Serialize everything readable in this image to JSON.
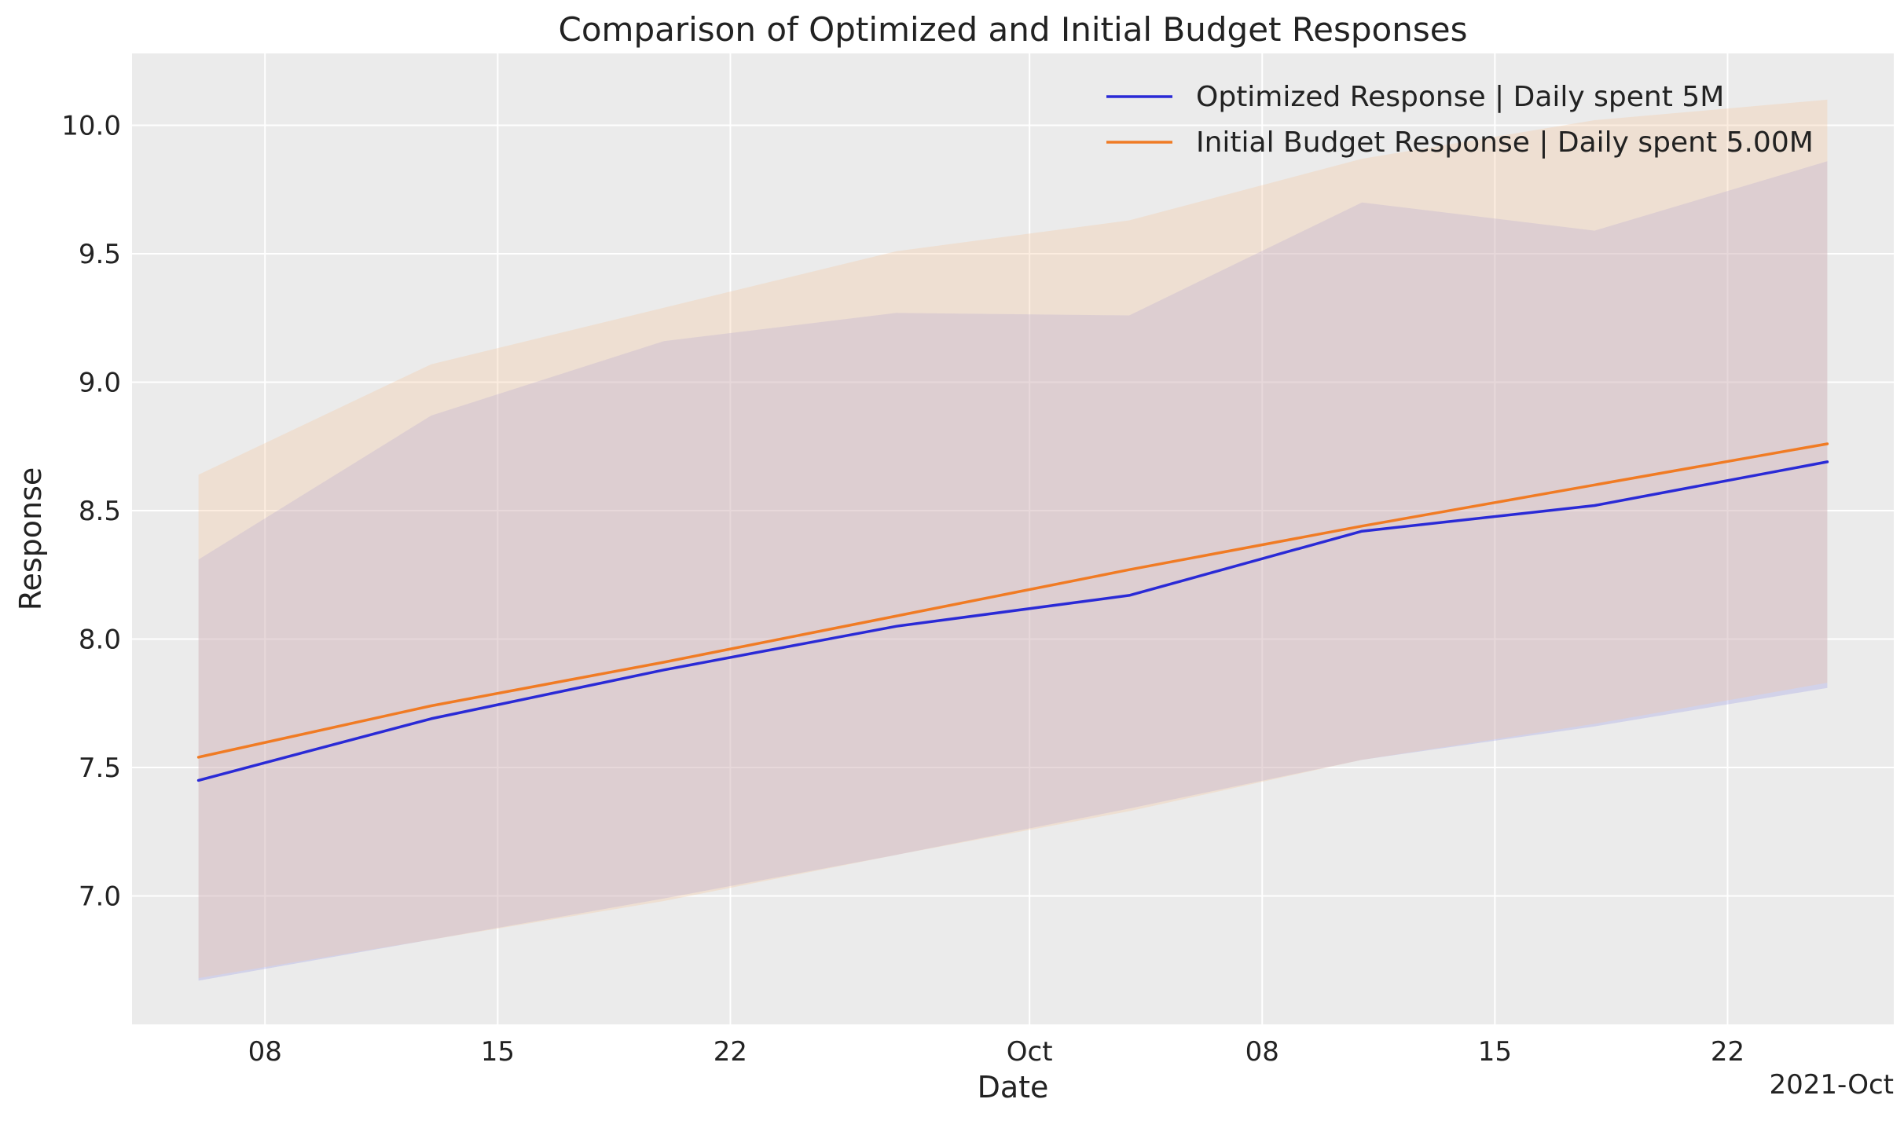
{
  "chart_data": {
    "type": "line",
    "title": "Comparison of Optimized and Initial Budget Responses",
    "xlabel": "Date",
    "ylabel": "Response",
    "x_offset_label": "2021-Oct",
    "x": [
      "2021-09-06",
      "2021-09-13",
      "2021-09-20",
      "2021-09-27",
      "2021-10-04",
      "2021-10-11",
      "2021-10-18",
      "2021-10-25"
    ],
    "xlim": [
      "2021-09-04",
      "2021-10-27"
    ],
    "x_ticks": [
      {
        "date": "2021-09-08",
        "label": "08"
      },
      {
        "date": "2021-09-15",
        "label": "15"
      },
      {
        "date": "2021-09-22",
        "label": "22"
      },
      {
        "date": "2021-10-01",
        "label": "Oct"
      },
      {
        "date": "2021-10-08",
        "label": "08"
      },
      {
        "date": "2021-10-15",
        "label": "15"
      },
      {
        "date": "2021-10-22",
        "label": "22"
      }
    ],
    "ylim": [
      6.5,
      10.28
    ],
    "y_ticks": [
      7.0,
      7.5,
      8.0,
      8.5,
      9.0,
      9.5,
      10.0
    ],
    "grid": true,
    "legend_position": "top-right",
    "series": [
      {
        "name": "Optimized Response | Daily spent 5M",
        "color": "#2a2ad6",
        "band_color": "#a0a0e6",
        "values": [
          7.45,
          7.69,
          7.88,
          8.05,
          8.17,
          8.42,
          8.52,
          8.69
        ],
        "band_lower": [
          6.67,
          6.83,
          6.99,
          7.16,
          7.34,
          7.53,
          7.66,
          7.81
        ],
        "band_upper": [
          8.31,
          8.87,
          9.16,
          9.27,
          9.26,
          9.7,
          9.59,
          9.86
        ]
      },
      {
        "name": "Initial Budget Response | Daily spent 5.00M",
        "color": "#f07b24",
        "band_color": "#f7c8a0",
        "values": [
          7.54,
          7.74,
          7.91,
          8.09,
          8.27,
          8.44,
          8.6,
          8.76
        ],
        "band_lower": [
          6.68,
          6.83,
          6.98,
          7.16,
          7.33,
          7.53,
          7.67,
          7.83
        ],
        "band_upper": [
          8.64,
          9.07,
          9.29,
          9.51,
          9.63,
          9.87,
          10.02,
          10.1
        ]
      }
    ]
  }
}
